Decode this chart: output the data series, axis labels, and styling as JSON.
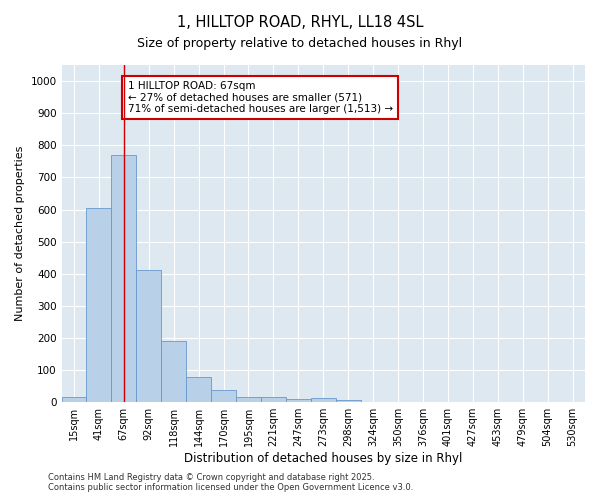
{
  "title": "1, HILLTOP ROAD, RHYL, LL18 4SL",
  "subtitle": "Size of property relative to detached houses in Rhyl",
  "xlabel": "Distribution of detached houses by size in Rhyl",
  "ylabel": "Number of detached properties",
  "categories": [
    "15sqm",
    "41sqm",
    "67sqm",
    "92sqm",
    "118sqm",
    "144sqm",
    "170sqm",
    "195sqm",
    "221sqm",
    "247sqm",
    "273sqm",
    "298sqm",
    "324sqm",
    "350sqm",
    "376sqm",
    "401sqm",
    "427sqm",
    "453sqm",
    "479sqm",
    "504sqm",
    "530sqm"
  ],
  "values": [
    15,
    605,
    770,
    412,
    192,
    78,
    38,
    17,
    17,
    10,
    14,
    6,
    0,
    0,
    0,
    0,
    0,
    0,
    0,
    0,
    0
  ],
  "bar_color": "#b8d0e8",
  "bar_edge_color": "#6699cc",
  "vline_x_index": 2,
  "vline_color": "#cc0000",
  "annotation_text": "1 HILLTOP ROAD: 67sqm\n← 27% of detached houses are smaller (571)\n71% of semi-detached houses are larger (1,513) →",
  "annotation_box_color": "#ffffff",
  "annotation_box_edge": "#cc0000",
  "ylim": [
    0,
    1050
  ],
  "yticks": [
    0,
    100,
    200,
    300,
    400,
    500,
    600,
    700,
    800,
    900,
    1000
  ],
  "plot_bg_color": "#dde8f0",
  "fig_bg_color": "#ffffff",
  "grid_color": "#ffffff",
  "footer1": "Contains HM Land Registry data © Crown copyright and database right 2025.",
  "footer2": "Contains public sector information licensed under the Open Government Licence v3.0."
}
